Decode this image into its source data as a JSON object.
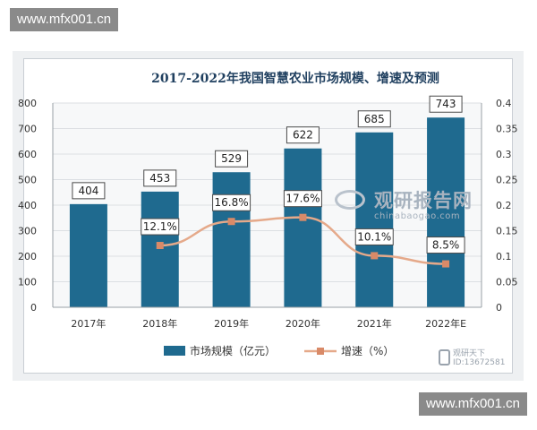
{
  "watermark": {
    "top": "www.mfx001.cn",
    "bottom": "www.mfx001.cn"
  },
  "brand": {
    "name": "观研报告网",
    "url": "chinabaogao.com"
  },
  "stamp": {
    "line1": "观研天下",
    "line2": "ID:13672581"
  },
  "colors": {
    "bar": "#1f6a8f",
    "line": "#e5a98a",
    "marker": "#d98a68",
    "title": "#1f3f5f",
    "label_border": "#4a4a4a"
  },
  "chart_data": {
    "type": "bar",
    "title": "2017-2022年我国智慧农业市场规模、增速及预测",
    "categories": [
      "2017年",
      "2018年",
      "2019年",
      "2020年",
      "2021年",
      "2022年E"
    ],
    "series": [
      {
        "name": "市场规模（亿元）",
        "type": "bar",
        "axis": "left",
        "values": [
          404,
          453,
          529,
          622,
          685,
          743
        ],
        "labels": [
          "404",
          "453",
          "529",
          "622",
          "685",
          "743"
        ]
      },
      {
        "name": "增速（%）",
        "type": "line",
        "axis": "right",
        "values": [
          null,
          0.121,
          0.168,
          0.176,
          0.101,
          0.085
        ],
        "labels": [
          "",
          "12.1%",
          "16.8%",
          "17.6%",
          "10.1%",
          "8.5%"
        ]
      }
    ],
    "y_left": {
      "ylim": [
        0,
        800
      ],
      "ticks": [
        "0",
        "100",
        "200",
        "300",
        "400",
        "500",
        "600",
        "700",
        "800"
      ]
    },
    "y_right": {
      "ylim": [
        0,
        0.4
      ],
      "ticks": [
        "0",
        "0.05",
        "0.1",
        "0.15",
        "0.2",
        "0.25",
        "0.3",
        "0.35",
        "0.4"
      ]
    },
    "grid": true,
    "legend": "bottom"
  }
}
